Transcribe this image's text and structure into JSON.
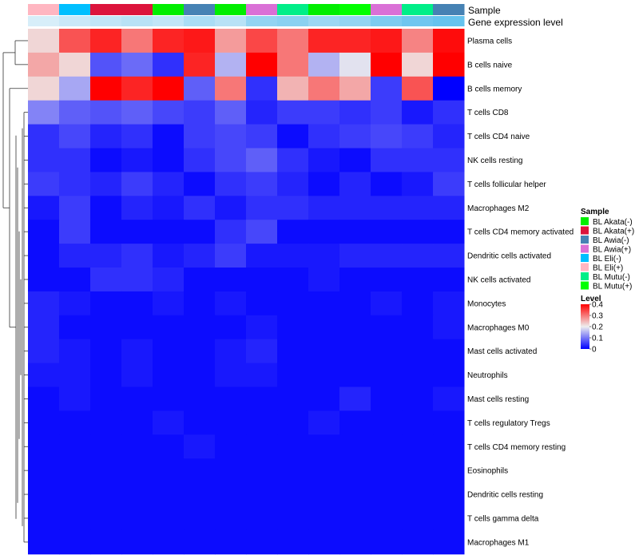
{
  "chart_data": {
    "type": "heatmap",
    "title": "",
    "annotation_tracks": [
      "Sample",
      "Gene expression level"
    ],
    "columns": [
      {
        "sample": "BL Eli(+)"
      },
      {
        "sample": "BL Eli(-)"
      },
      {
        "sample": "BL Akata(+)"
      },
      {
        "sample": "BL Akata(+)"
      },
      {
        "sample": "BL Akata(-)"
      },
      {
        "sample": "BL Awia(-)"
      },
      {
        "sample": "BL Akata(-)"
      },
      {
        "sample": "BL Awia(+)"
      },
      {
        "sample": "BL Mutu(-)"
      },
      {
        "sample": "BL Akata(-)"
      },
      {
        "sample": "BL Mutu(+)"
      },
      {
        "sample": "BL Awia(+)"
      },
      {
        "sample": "BL Mutu(-)"
      },
      {
        "sample": "BL Awia(-)"
      }
    ],
    "rows": [
      "Plasma cells",
      "B cells naive",
      "B cells memory",
      "T cells CD8",
      "T cells CD4 naive",
      "NK cells resting",
      "T cells follicular helper",
      "Macrophages M2",
      "T cells CD4 memory activated",
      "Dendritic cells activated",
      "NK cells activated",
      "Monocytes",
      "Macrophages M0",
      "Mast cells activated",
      "Neutrophils",
      "Mast cells resting",
      "T cells regulatory  Tregs",
      "T cells CD4 memory resting",
      "Eosinophils",
      "Dendritic cells resting",
      "T cells gamma delta",
      "Macrophages M1"
    ],
    "values": [
      [
        0.22,
        0.33,
        0.37,
        0.3,
        0.37,
        0.38,
        0.27,
        0.34,
        0.3,
        0.37,
        0.37,
        0.38,
        0.29,
        0.39
      ],
      [
        0.26,
        0.22,
        0.07,
        0.09,
        0.04,
        0.37,
        0.15,
        0.4,
        0.3,
        0.15,
        0.19,
        0.4,
        0.22,
        0.4
      ],
      [
        0.22,
        0.14,
        0.4,
        0.37,
        0.4,
        0.08,
        0.3,
        0.04,
        0.25,
        0.3,
        0.26,
        0.05,
        0.33,
        0.0
      ],
      [
        0.11,
        0.08,
        0.07,
        0.08,
        0.06,
        0.05,
        0.08,
        0.03,
        0.05,
        0.05,
        0.04,
        0.05,
        0.02,
        0.04
      ],
      [
        0.04,
        0.06,
        0.03,
        0.04,
        0.01,
        0.05,
        0.06,
        0.05,
        0.01,
        0.04,
        0.05,
        0.06,
        0.05,
        0.03
      ],
      [
        0.04,
        0.04,
        0.01,
        0.02,
        0.01,
        0.04,
        0.06,
        0.08,
        0.04,
        0.02,
        0.01,
        0.04,
        0.04,
        0.04
      ],
      [
        0.05,
        0.04,
        0.03,
        0.05,
        0.03,
        0.01,
        0.04,
        0.05,
        0.03,
        0.01,
        0.03,
        0.01,
        0.02,
        0.05
      ],
      [
        0.02,
        0.05,
        0.01,
        0.03,
        0.02,
        0.04,
        0.02,
        0.04,
        0.04,
        0.03,
        0.03,
        0.03,
        0.03,
        0.03
      ],
      [
        0.01,
        0.05,
        0.01,
        0.01,
        0.01,
        0.01,
        0.04,
        0.06,
        0.01,
        0.01,
        0.01,
        0.01,
        0.01,
        0.01
      ],
      [
        0.01,
        0.03,
        0.03,
        0.04,
        0.02,
        0.03,
        0.05,
        0.02,
        0.02,
        0.02,
        0.03,
        0.03,
        0.03,
        0.03
      ],
      [
        0.01,
        0.01,
        0.04,
        0.04,
        0.03,
        0.01,
        0.01,
        0.01,
        0.01,
        0.02,
        0.01,
        0.01,
        0.01,
        0.01
      ],
      [
        0.03,
        0.02,
        0.01,
        0.01,
        0.02,
        0.01,
        0.02,
        0.01,
        0.01,
        0.01,
        0.01,
        0.02,
        0.01,
        0.02
      ],
      [
        0.03,
        0.01,
        0.01,
        0.01,
        0.01,
        0.01,
        0.01,
        0.02,
        0.01,
        0.01,
        0.01,
        0.01,
        0.01,
        0.02
      ],
      [
        0.03,
        0.02,
        0.01,
        0.02,
        0.01,
        0.01,
        0.02,
        0.03,
        0.01,
        0.01,
        0.01,
        0.01,
        0.01,
        0.01
      ],
      [
        0.02,
        0.02,
        0.01,
        0.02,
        0.01,
        0.01,
        0.02,
        0.02,
        0.01,
        0.01,
        0.01,
        0.01,
        0.01,
        0.01
      ],
      [
        0.01,
        0.02,
        0.01,
        0.01,
        0.01,
        0.01,
        0.01,
        0.01,
        0.01,
        0.01,
        0.03,
        0.01,
        0.01,
        0.02
      ],
      [
        0.01,
        0.01,
        0.01,
        0.01,
        0.02,
        0.01,
        0.01,
        0.01,
        0.01,
        0.02,
        0.01,
        0.01,
        0.01,
        0.01
      ],
      [
        0.01,
        0.01,
        0.01,
        0.01,
        0.01,
        0.02,
        0.01,
        0.01,
        0.01,
        0.01,
        0.01,
        0.01,
        0.01,
        0.01
      ],
      [
        0.01,
        0.01,
        0.01,
        0.01,
        0.01,
        0.01,
        0.01,
        0.01,
        0.01,
        0.01,
        0.01,
        0.01,
        0.01,
        0.01
      ],
      [
        0.01,
        0.01,
        0.01,
        0.01,
        0.01,
        0.01,
        0.01,
        0.01,
        0.01,
        0.01,
        0.01,
        0.01,
        0.01,
        0.01
      ],
      [
        0.01,
        0.01,
        0.01,
        0.01,
        0.01,
        0.01,
        0.01,
        0.01,
        0.01,
        0.01,
        0.01,
        0.01,
        0.01,
        0.01
      ],
      [
        0.01,
        0.01,
        0.01,
        0.01,
        0.01,
        0.01,
        0.01,
        0.01,
        0.01,
        0.01,
        0.01,
        0.01,
        0.01,
        0.01
      ]
    ],
    "gene_expression_level_track": [
      0.05,
      0.08,
      0.1,
      0.12,
      0.1,
      0.15,
      0.12,
      0.2,
      0.22,
      0.18,
      0.2,
      0.25,
      0.28,
      0.3
    ],
    "sample_legend": {
      "title": "Sample",
      "entries": [
        {
          "label": "BL Akata(-)",
          "color": "#00ee00"
        },
        {
          "label": "BL Akata(+)",
          "color": "#dc143c"
        },
        {
          "label": "BL Awia(-)",
          "color": "#4682b4"
        },
        {
          "label": "BL Awia(+)",
          "color": "#da70d6"
        },
        {
          "label": "BL Eli(-)",
          "color": "#00bfff"
        },
        {
          "label": "BL Eli(+)",
          "color": "#ffb6c1"
        },
        {
          "label": "BL Mutu(-)",
          "color": "#00ee88"
        },
        {
          "label": "BL Mutu(+)",
          "color": "#00ff00"
        }
      ]
    },
    "level_legend": {
      "title": "Level",
      "range": [
        0,
        0.4
      ],
      "ticks": [
        "0.4",
        "0.3",
        "0.2",
        "0.1",
        "0"
      ],
      "colors": {
        "low": "#0000ff",
        "mid": "#eeeeee",
        "high": "#ff0000"
      }
    },
    "track_colors": {
      "low": "#eef6fb",
      "high": "#66c3ee"
    }
  }
}
